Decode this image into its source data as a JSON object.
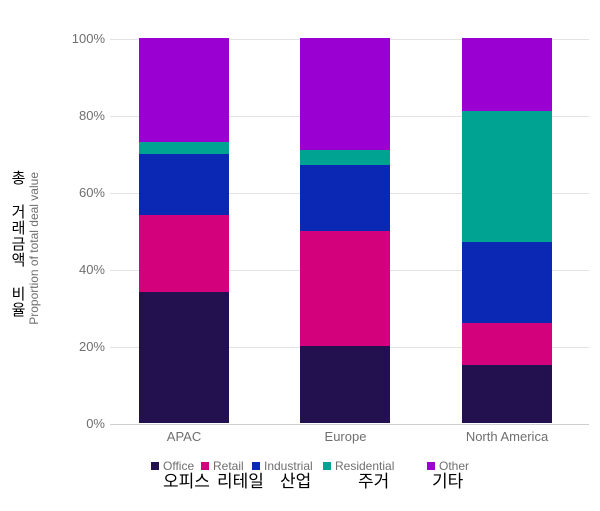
{
  "chart_data": {
    "type": "bar",
    "subtype": "stacked-100-percent-column",
    "title": "",
    "categories": [
      "APAC",
      "Europe",
      "North America"
    ],
    "series": [
      {
        "name": "Office",
        "name_korean": "오피스",
        "color": "#23104e",
        "values": [
          34,
          20,
          15
        ]
      },
      {
        "name": "Retail",
        "name_korean": "리테일",
        "color": "#d4017d",
        "values": [
          20,
          30,
          11
        ]
      },
      {
        "name": "Industrial",
        "name_korean": "산업",
        "color": "#0b28b4",
        "values": [
          16,
          17,
          21
        ]
      },
      {
        "name": "Residential",
        "name_korean": "주거",
        "color": "#00a392",
        "values": [
          3,
          4,
          34
        ]
      },
      {
        "name": "Other",
        "name_korean": "기타",
        "color": "#9b00d3",
        "values": [
          27,
          29,
          19
        ]
      }
    ],
    "ylabel_korean": "총 거래금액 비율",
    "ylabel_english": "Proportion of total deal value",
    "yticks": [
      "0%",
      "20%",
      "40%",
      "60%",
      "80%",
      "100%"
    ],
    "ylim": [
      0,
      100
    ],
    "grid": true,
    "legend_position": "bottom"
  },
  "colors": {
    "gridline": "#e3e3e3",
    "axis_line": "#cfcfcf",
    "axis_text": "#6f6f6f",
    "korean_text": "#000000",
    "background": "#ffffff"
  }
}
